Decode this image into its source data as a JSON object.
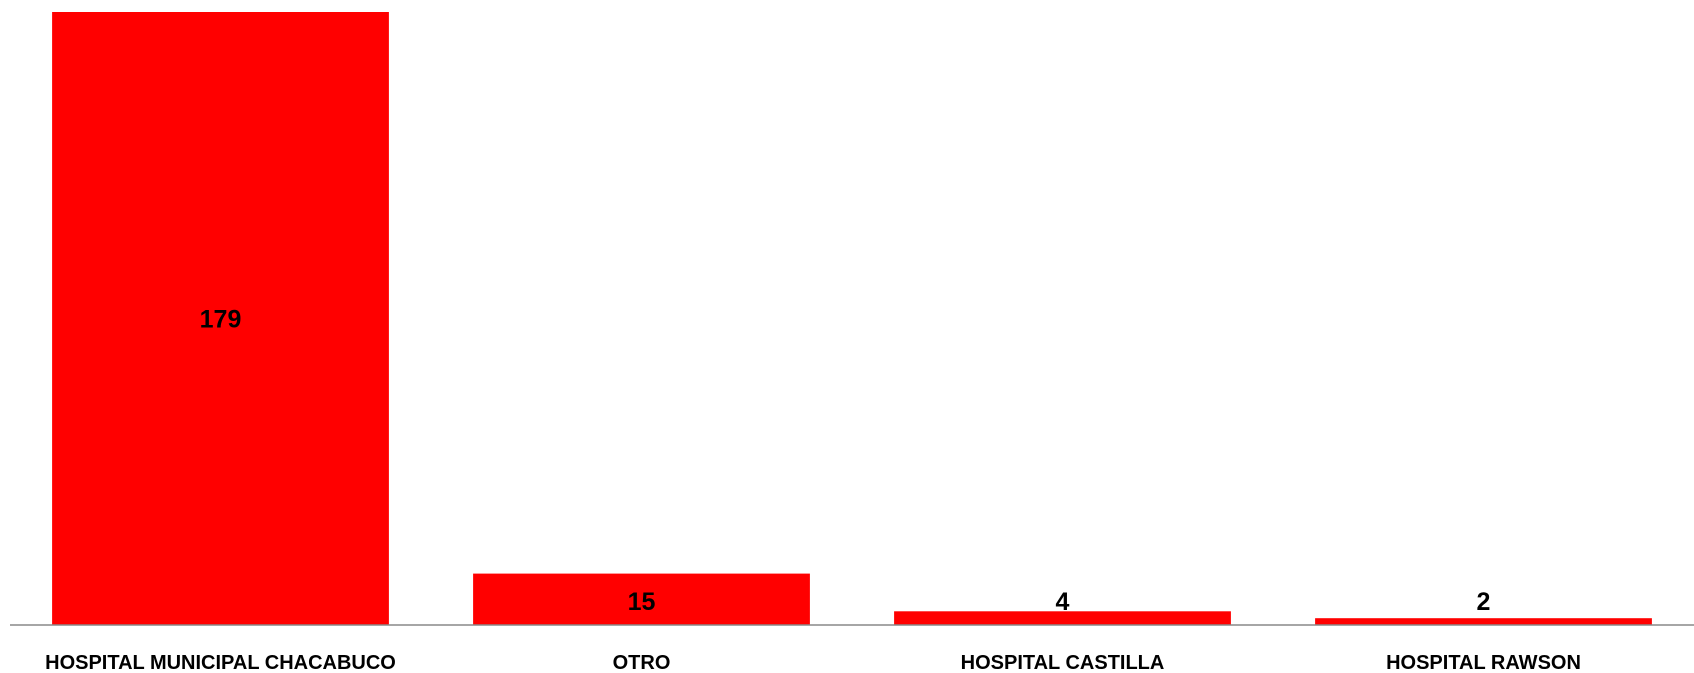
{
  "chart_data": {
    "type": "bar",
    "categories": [
      "HOSPITAL MUNICIPAL CHACABUCO",
      "OTRO",
      "HOSPITAL CASTILLA",
      "HOSPITAL RAWSON"
    ],
    "values": [
      179,
      15,
      4,
      2
    ],
    "title": "",
    "xlabel": "",
    "ylabel": "",
    "ylim": [
      0,
      179
    ],
    "grid": false,
    "legend": "none",
    "data_labels": true,
    "colors": {
      "bar": "#ff0000",
      "axis": "#888888",
      "text": "#000000"
    }
  }
}
